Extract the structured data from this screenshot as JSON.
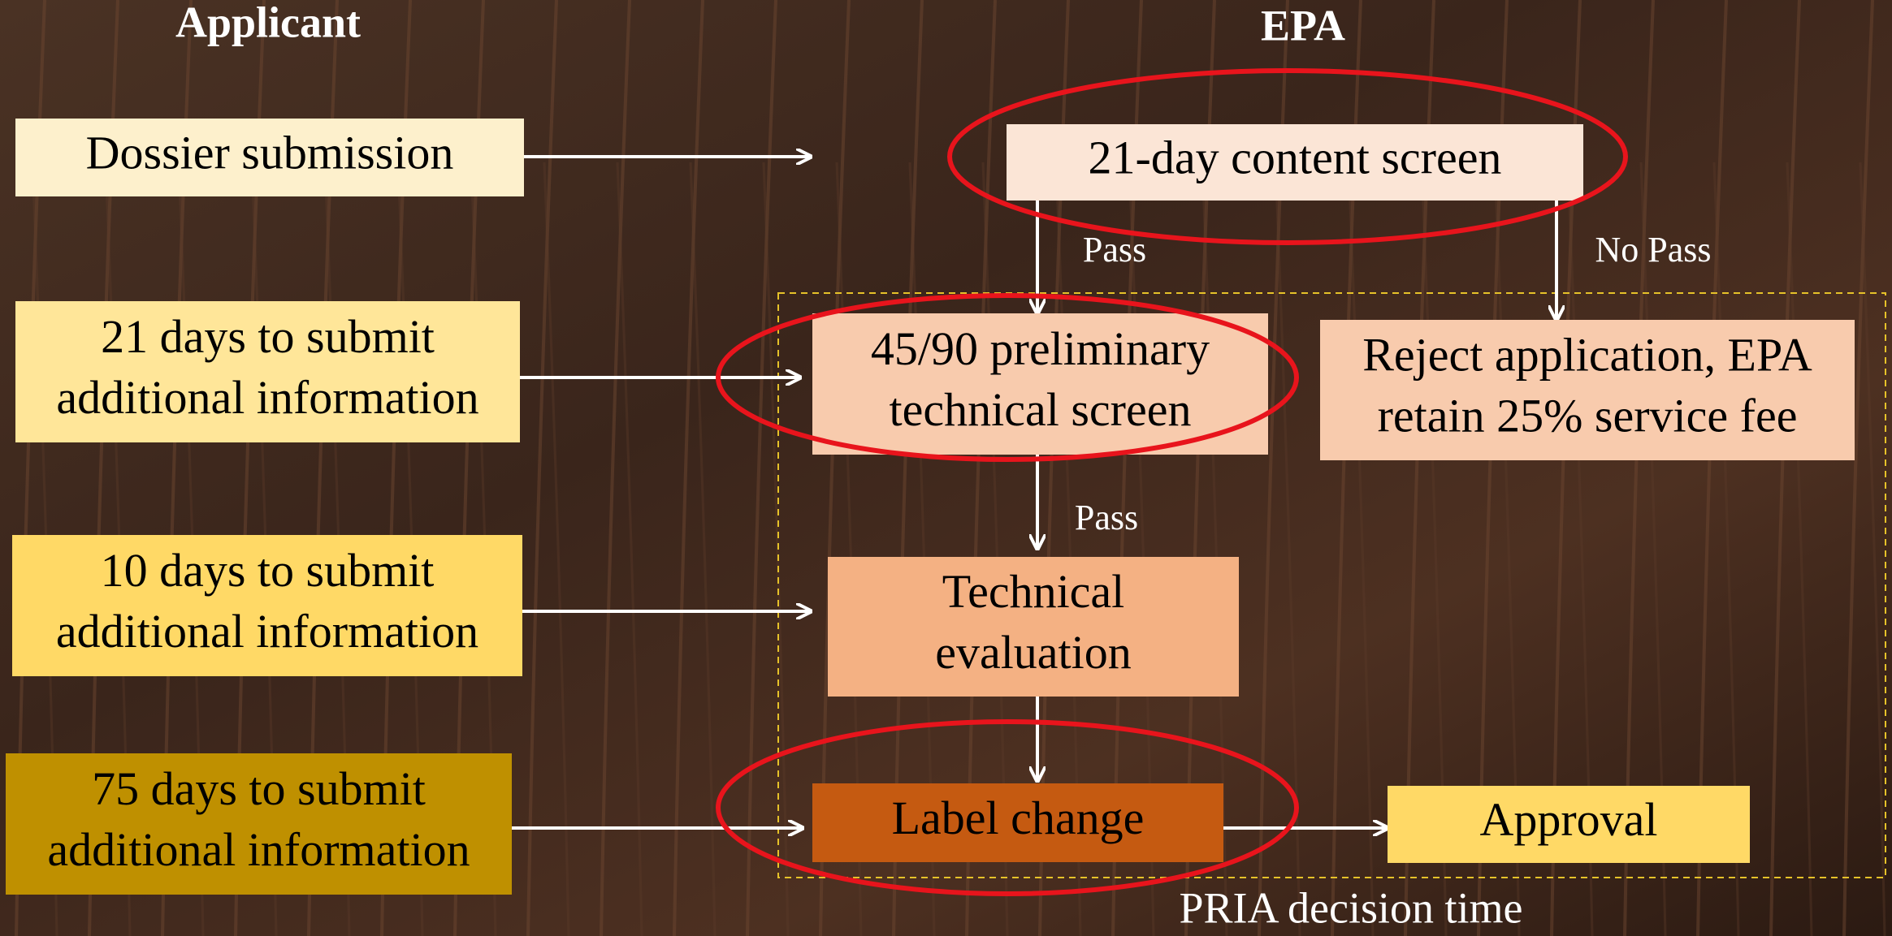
{
  "headers": {
    "applicant": "Applicant",
    "epa": "EPA"
  },
  "nodes": [
    {
      "lines": [
        "Dossier submission"
      ]
    },
    {
      "lines": [
        "21 days to submit",
        "additional information"
      ]
    },
    {
      "lines": [
        "10 days to submit",
        "additional information"
      ]
    },
    {
      "lines": [
        "75 days to submit",
        "additional information"
      ]
    },
    {
      "lines": [
        "21-day content screen"
      ]
    },
    {
      "lines": [
        "45/90 preliminary",
        "technical screen"
      ]
    },
    {
      "lines": [
        "Reject application, EPA",
        "retain 25% service fee"
      ]
    },
    {
      "lines": [
        "Technical",
        "evaluation"
      ]
    },
    {
      "lines": [
        "Label change"
      ]
    },
    {
      "lines": [
        "Approval"
      ]
    }
  ],
  "edge_labels": [
    "Pass",
    "No Pass",
    "Pass"
  ],
  "caption": "PRIA decision time"
}
